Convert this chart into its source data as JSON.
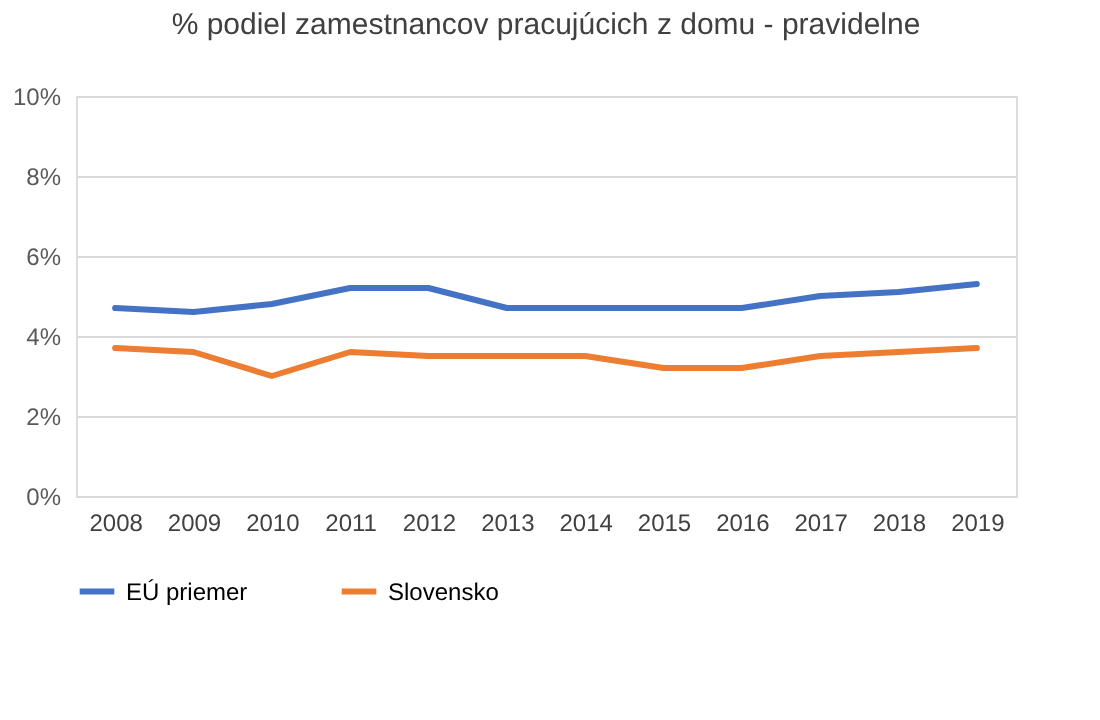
{
  "chart_data": {
    "type": "line",
    "title": "% podiel zamestnancov pracujúcich z domu - pravidelne",
    "categories": [
      "2008",
      "2009",
      "2010",
      "2011",
      "2012",
      "2013",
      "2014",
      "2015",
      "2016",
      "2017",
      "2018",
      "2019"
    ],
    "series": [
      {
        "name": "EÚ priemer",
        "color": "#4472c4",
        "values": [
          4.7,
          4.6,
          4.8,
          5.2,
          5.2,
          4.7,
          4.7,
          4.7,
          4.7,
          5.0,
          5.1,
          5.3
        ]
      },
      {
        "name": "Slovensko",
        "color": "#ed7d31",
        "values": [
          3.7,
          3.6,
          3.0,
          3.6,
          3.5,
          3.5,
          3.5,
          3.2,
          3.2,
          3.5,
          3.6,
          3.7
        ]
      }
    ],
    "ylim": [
      0,
      10
    ],
    "yticks": [
      {
        "value": 0,
        "label": "0%"
      },
      {
        "value": 2,
        "label": "2%"
      },
      {
        "value": 4,
        "label": "4%"
      },
      {
        "value": 6,
        "label": "6%"
      },
      {
        "value": 8,
        "label": "8%"
      },
      {
        "value": 10,
        "label": "10%"
      }
    ],
    "grid": "y",
    "legend": "bottom",
    "marker": "none",
    "line_style": "solid"
  }
}
